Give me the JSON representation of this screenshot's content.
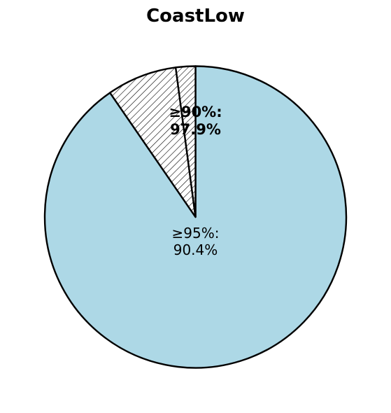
{
  "chart_data": {
    "type": "pie",
    "title": "CoastLow",
    "start_angle_deg": 90,
    "direction": "clockwise",
    "slices": [
      {
        "value": 90.4,
        "color": "#add8e6",
        "hatch": "none"
      },
      {
        "value": 7.5,
        "color": "#ffffff",
        "hatch": "diagonal-dense"
      },
      {
        "value": 2.1,
        "color": "#ffffff",
        "hatch": "diagonal"
      }
    ],
    "labels": [
      {
        "text": "≥95%:\n90.4%",
        "style": "normal"
      },
      {
        "text": "≥90%:\n97.9%",
        "style": "bold"
      }
    ],
    "edge_color": "#000000"
  }
}
